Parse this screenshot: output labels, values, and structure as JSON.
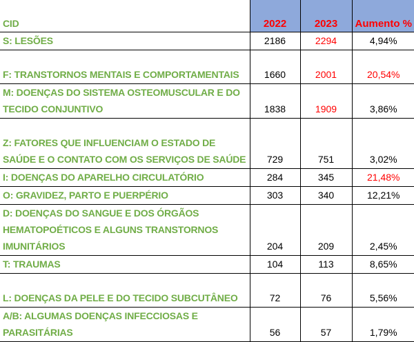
{
  "header": {
    "cid": "CID",
    "year1": "2022",
    "year2": "2023",
    "increase": "Aumento %"
  },
  "colors": {
    "label_green": "#70AD47",
    "header_blue": "#8EA9DB",
    "highlight_red": "#FF0000"
  },
  "rows": [
    {
      "cid": "S: LESÕES",
      "v2022": "2186",
      "v2023": "2294",
      "increase": "4,94%",
      "red2023": true,
      "redInc": false,
      "lines": 1
    },
    {
      "cid": "F: TRANSTORNOS MENTAIS E COMPORTAMENTAIS",
      "v2022": "1660",
      "v2023": "2001",
      "increase": "20,54%",
      "red2023": true,
      "redInc": true,
      "lines": 2
    },
    {
      "cid": "M: DOENÇAS DO SISTEMA OSTEOMUSCULAR E DO TECIDO CONJUNTIVO",
      "v2022": "1838",
      "v2023": "1909",
      "increase": "3,86%",
      "red2023": true,
      "redInc": false,
      "lines": 2
    },
    {
      "cid": "Z: FATORES QUE INFLUENCIAM O ESTADO DE SAÚDE E O CONTATO COM OS SERVIÇOS DE SAÚDE",
      "v2022": "729",
      "v2023": "751",
      "increase": "3,02%",
      "red2023": false,
      "redInc": false,
      "lines": 3
    },
    {
      "cid": "I: DOENÇAS DO APARELHO CIRCULATÓRIO",
      "v2022": "284",
      "v2023": "345",
      "increase": "21,48%",
      "red2023": false,
      "redInc": true,
      "lines": 1
    },
    {
      "cid": "O: GRAVIDEZ, PARTO E PUERPÉRIO",
      "v2022": "303",
      "v2023": "340",
      "increase": "12,21%",
      "red2023": false,
      "redInc": false,
      "lines": 1
    },
    {
      "cid": "D: DOENÇAS DO SANGUE E DOS ÓRGÃOS HEMATOPOÉTICOS E ALGUNS TRANSTORNOS IMUNITÁRIOS",
      "v2022": "204",
      "v2023": "209",
      "increase": "2,45%",
      "red2023": false,
      "redInc": false,
      "lines": 3
    },
    {
      "cid": "T: TRAUMAS",
      "v2022": "104",
      "v2023": "113",
      "increase": "8,65%",
      "red2023": false,
      "redInc": false,
      "lines": 1
    },
    {
      "cid": "L: DOENÇAS DA PELE E DO TECIDO SUBCUTÂNEO",
      "v2022": "72",
      "v2023": "76",
      "increase": "5,56%",
      "red2023": false,
      "redInc": false,
      "lines": 2
    },
    {
      "cid": "A/B: ALGUMAS DOENÇAS INFECCIOSAS E PARASITÁRIAS",
      "v2022": "56",
      "v2023": "57",
      "increase": "1,79%",
      "red2023": false,
      "redInc": false,
      "lines": 2
    }
  ]
}
